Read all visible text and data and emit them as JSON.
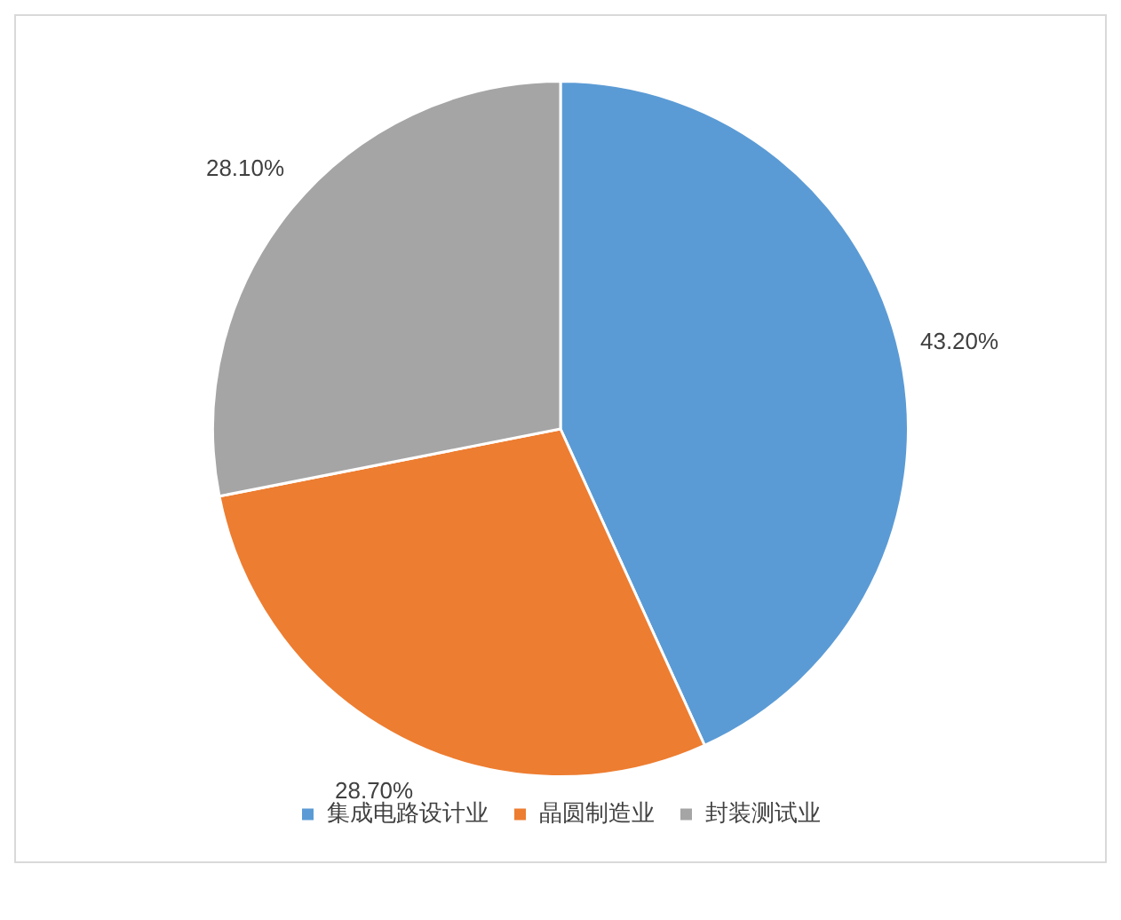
{
  "chart_data": {
    "type": "pie",
    "categories": [
      "集成电路设计业",
      "晶圆制造业",
      "封装测试业"
    ],
    "values": [
      43.2,
      28.7,
      28.1
    ],
    "colors": [
      "#5b9bd5",
      "#ed7d31",
      "#a5a5a5"
    ],
    "value_labels": [
      "43.20%",
      "28.70%",
      "28.10%"
    ],
    "legend": "bottom"
  }
}
